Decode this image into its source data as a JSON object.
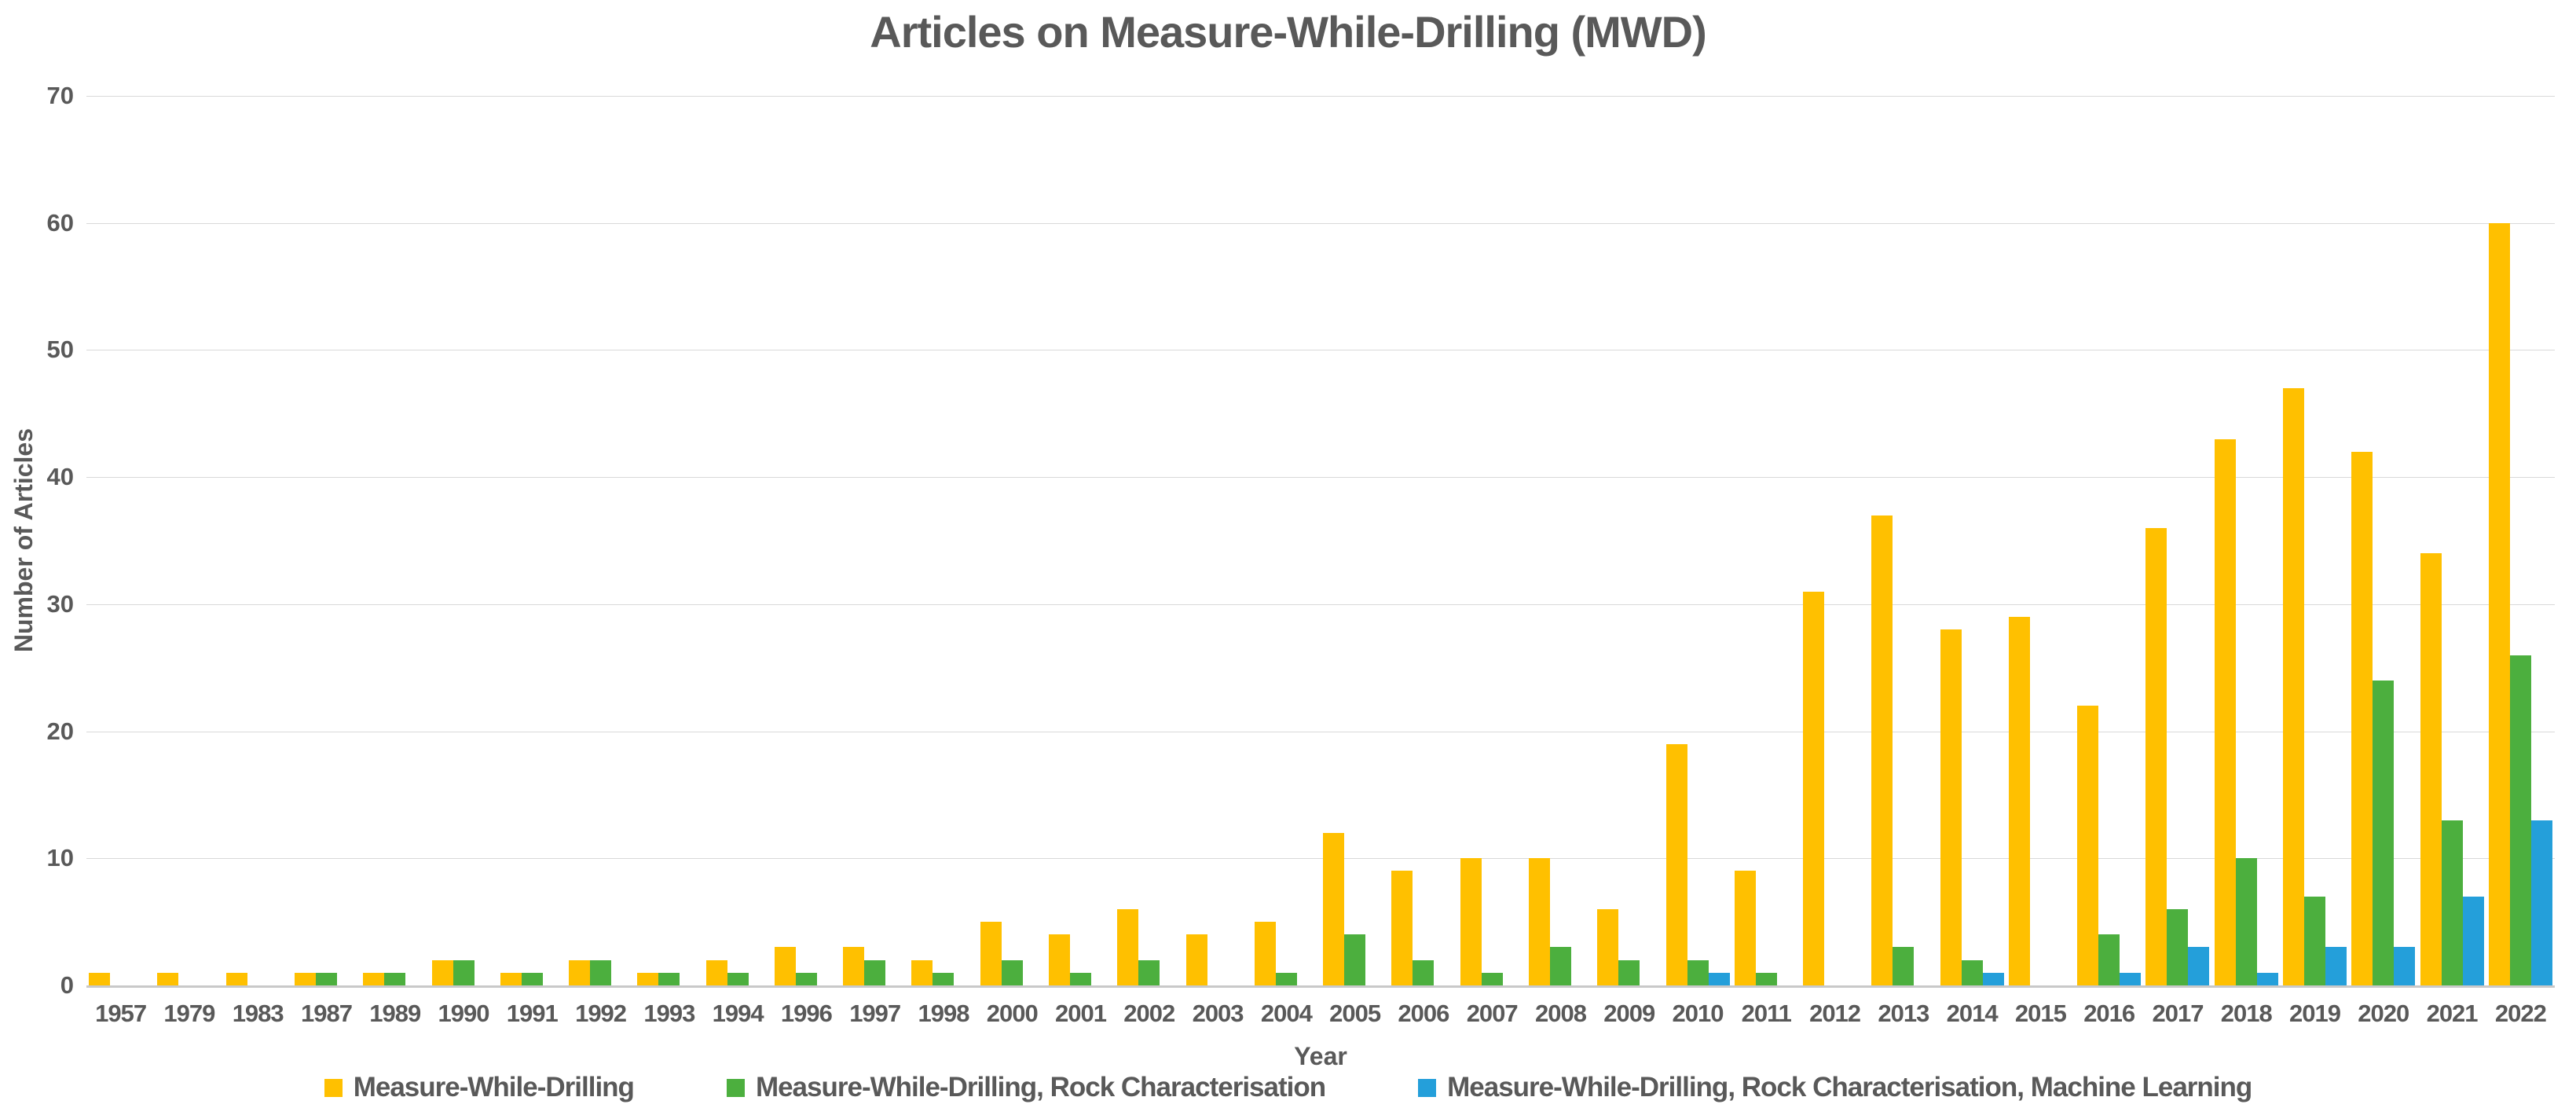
{
  "title": "Articles on Measure-While-Drilling (MWD)",
  "chart_data": {
    "type": "bar",
    "title": "Articles on Measure-While-Drilling (MWD)",
    "xlabel": "Year",
    "ylabel": "Number of Articles",
    "ylim": [
      0,
      70
    ],
    "yticks": [
      0,
      10,
      20,
      30,
      40,
      50,
      60,
      70
    ],
    "grid": true,
    "legend_position": "bottom",
    "categories": [
      "1957",
      "1979",
      "1983",
      "1987",
      "1989",
      "1990",
      "1991",
      "1992",
      "1993",
      "1994",
      "1996",
      "1997",
      "1998",
      "2000",
      "2001",
      "2002",
      "2003",
      "2004",
      "2005",
      "2006",
      "2007",
      "2008",
      "2009",
      "2010",
      "2011",
      "2012",
      "2013",
      "2014",
      "2015",
      "2016",
      "2017",
      "2018",
      "2019",
      "2020",
      "2021",
      "2022"
    ],
    "series": [
      {
        "name": "Measure-While-Drilling",
        "color": "#FFC000",
        "values": [
          1,
          1,
          1,
          1,
          1,
          2,
          1,
          2,
          1,
          2,
          3,
          3,
          2,
          5,
          4,
          6,
          4,
          5,
          12,
          9,
          10,
          10,
          6,
          19,
          9,
          31,
          37,
          28,
          29,
          22,
          36,
          43,
          47,
          42,
          34,
          60
        ]
      },
      {
        "name": "Measure-While-Drilling, Rock Characterisation",
        "color": "#4CAF3E",
        "values": [
          0,
          0,
          0,
          1,
          1,
          2,
          1,
          2,
          1,
          1,
          1,
          2,
          1,
          2,
          1,
          2,
          0,
          1,
          4,
          2,
          1,
          3,
          2,
          2,
          1,
          0,
          3,
          2,
          0,
          4,
          6,
          10,
          7,
          24,
          13,
          26
        ]
      },
      {
        "name": "Measure-While-Drilling, Rock Characterisation, Machine Learning",
        "color": "#249FDA",
        "values": [
          0,
          0,
          0,
          0,
          0,
          0,
          0,
          0,
          0,
          0,
          0,
          0,
          0,
          0,
          0,
          0,
          0,
          0,
          0,
          0,
          0,
          0,
          0,
          1,
          0,
          0,
          0,
          1,
          0,
          1,
          3,
          1,
          3,
          3,
          7,
          13
        ]
      }
    ]
  }
}
